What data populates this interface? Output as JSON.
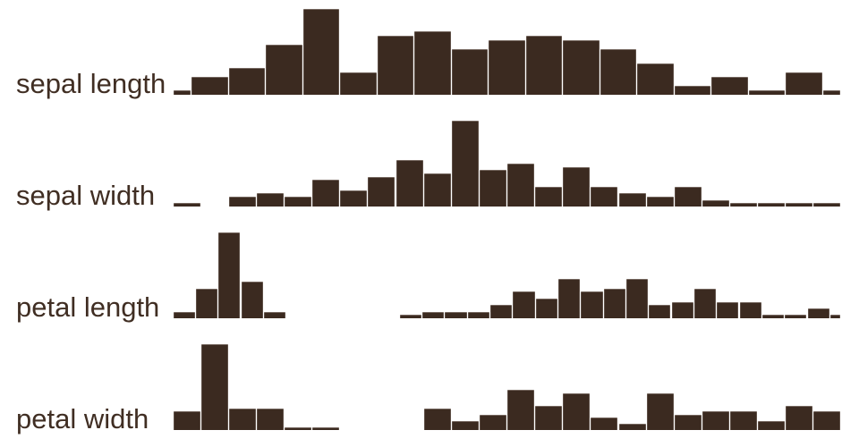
{
  "colors": {
    "bar_fill": "#3b2a20",
    "bar_edge_highlight": "#cfc5be",
    "label_text": "#402e23",
    "background": "#ffffff"
  },
  "chart_data": [
    {
      "type": "bar",
      "subtype": "histogram",
      "label": "sepal length",
      "x_domain": [
        4.3,
        7.9
      ],
      "first_bin_start": 4.2,
      "bin_width": 0.2,
      "counts": [
        1,
        4,
        6,
        11,
        19,
        5,
        13,
        14,
        10,
        12,
        13,
        12,
        10,
        7,
        2,
        4,
        1,
        5,
        1
      ],
      "ylim": [
        0,
        19
      ],
      "grid": false,
      "axis_ticks_shown": false
    },
    {
      "type": "bar",
      "subtype": "histogram",
      "label": "sepal width",
      "x_domain": [
        2.0,
        4.4
      ],
      "first_bin_start": 2.0,
      "bin_width": 0.1,
      "counts": [
        1,
        0,
        3,
        4,
        3,
        8,
        5,
        9,
        14,
        10,
        26,
        11,
        13,
        6,
        12,
        6,
        4,
        3,
        6,
        2,
        1,
        1,
        1,
        1
      ],
      "ylim": [
        0,
        26
      ],
      "grid": false,
      "axis_ticks_shown": false
    },
    {
      "type": "bar",
      "subtype": "histogram",
      "label": "petal length",
      "x_domain": [
        1.0,
        6.9
      ],
      "first_bin_start": 1.0,
      "bin_width": 0.2,
      "counts": [
        2,
        9,
        26,
        11,
        2,
        0,
        0,
        0,
        0,
        0,
        1,
        2,
        2,
        2,
        4,
        8,
        6,
        12,
        8,
        9,
        12,
        4,
        5,
        9,
        5,
        5,
        1,
        1,
        3,
        1
      ],
      "ylim": [
        0,
        26
      ],
      "grid": false,
      "axis_ticks_shown": false
    },
    {
      "type": "bar",
      "subtype": "histogram",
      "label": "petal width",
      "x_domain": [
        0.1,
        2.5
      ],
      "first_bin_start": 0.1,
      "bin_width": 0.1,
      "counts": [
        6,
        28,
        7,
        7,
        1,
        1,
        0,
        0,
        0,
        7,
        3,
        5,
        13,
        8,
        12,
        4,
        2,
        12,
        5,
        6,
        6,
        3,
        8,
        6
      ],
      "ylim": [
        0,
        28
      ],
      "grid": false,
      "axis_ticks_shown": false
    }
  ]
}
